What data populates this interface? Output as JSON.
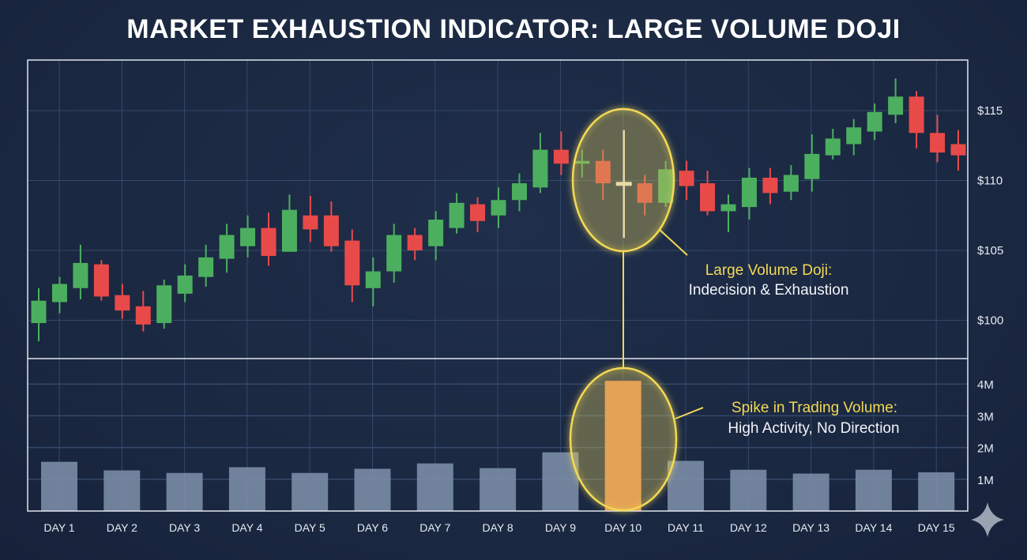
{
  "chart_data": {
    "title": "MARKET EXHAUSTION INDICATOR: LARGE VOLUME DOJI",
    "type": "candlestick+bar",
    "grid": true,
    "colors": {
      "up": "#4caf5f",
      "down": "#e84a4a",
      "doji": "#f3ecd2",
      "volume": "#7a8ca6",
      "volume_highlight": "#ef8f50",
      "annotation": "#f3d955",
      "background": "#1a2740"
    },
    "price_panel": {
      "y_ticks": [
        "$100",
        "$105",
        "$110",
        "$115"
      ],
      "y_tick_values": [
        100,
        105,
        110,
        115
      ],
      "ylim": [
        97.5,
        118.5
      ],
      "candles": [
        {
          "o": 99.8,
          "h": 102.3,
          "l": 98.5,
          "c": 101.4
        },
        {
          "o": 101.3,
          "h": 103.1,
          "l": 100.5,
          "c": 102.6
        },
        {
          "o": 102.3,
          "h": 105.4,
          "l": 101.5,
          "c": 104.1
        },
        {
          "o": 104.0,
          "h": 104.3,
          "l": 101.4,
          "c": 101.7
        },
        {
          "o": 101.8,
          "h": 102.6,
          "l": 100.1,
          "c": 100.7
        },
        {
          "o": 101.0,
          "h": 102.1,
          "l": 99.2,
          "c": 99.7
        },
        {
          "o": 99.8,
          "h": 102.9,
          "l": 99.4,
          "c": 102.5
        },
        {
          "o": 101.9,
          "h": 104.0,
          "l": 101.3,
          "c": 103.2
        },
        {
          "o": 103.1,
          "h": 105.4,
          "l": 102.4,
          "c": 104.5
        },
        {
          "o": 104.4,
          "h": 106.9,
          "l": 103.4,
          "c": 106.1
        },
        {
          "o": 105.3,
          "h": 107.5,
          "l": 104.5,
          "c": 106.6
        },
        {
          "o": 106.6,
          "h": 107.7,
          "l": 103.9,
          "c": 104.6
        },
        {
          "o": 104.9,
          "h": 109.0,
          "l": 104.9,
          "c": 107.9
        },
        {
          "o": 107.5,
          "h": 108.9,
          "l": 105.6,
          "c": 106.5
        },
        {
          "o": 107.5,
          "h": 108.5,
          "l": 104.9,
          "c": 105.3
        },
        {
          "o": 105.7,
          "h": 106.5,
          "l": 101.3,
          "c": 102.5
        },
        {
          "o": 102.3,
          "h": 104.5,
          "l": 101.0,
          "c": 103.5
        },
        {
          "o": 103.5,
          "h": 106.9,
          "l": 102.7,
          "c": 106.1
        },
        {
          "o": 106.1,
          "h": 106.6,
          "l": 104.3,
          "c": 105.0
        },
        {
          "o": 105.3,
          "h": 107.8,
          "l": 104.3,
          "c": 107.2
        },
        {
          "o": 106.6,
          "h": 109.1,
          "l": 106.2,
          "c": 108.4
        },
        {
          "o": 108.3,
          "h": 108.8,
          "l": 106.3,
          "c": 107.1
        },
        {
          "o": 107.5,
          "h": 109.5,
          "l": 106.6,
          "c": 108.6
        },
        {
          "o": 108.6,
          "h": 110.5,
          "l": 107.8,
          "c": 109.8
        },
        {
          "o": 109.5,
          "h": 113.4,
          "l": 109.1,
          "c": 112.2
        },
        {
          "o": 112.2,
          "h": 113.5,
          "l": 110.4,
          "c": 111.2
        },
        {
          "o": 111.2,
          "h": 112.2,
          "l": 110.2,
          "c": 111.4
        },
        {
          "o": 111.4,
          "h": 112.2,
          "l": 108.6,
          "c": 109.8
        },
        {
          "o": 109.9,
          "h": 113.6,
          "l": 105.9,
          "c": 109.9,
          "doji": true
        },
        {
          "o": 109.8,
          "h": 110.4,
          "l": 107.5,
          "c": 108.4
        },
        {
          "o": 108.4,
          "h": 111.4,
          "l": 108.1,
          "c": 110.8
        },
        {
          "o": 110.7,
          "h": 111.4,
          "l": 108.6,
          "c": 109.6
        },
        {
          "o": 109.8,
          "h": 110.7,
          "l": 107.5,
          "c": 107.8
        },
        {
          "o": 107.8,
          "h": 109.0,
          "l": 106.3,
          "c": 108.3
        },
        {
          "o": 108.1,
          "h": 110.9,
          "l": 107.2,
          "c": 110.2
        },
        {
          "o": 110.2,
          "h": 110.9,
          "l": 108.3,
          "c": 109.1
        },
        {
          "o": 109.2,
          "h": 111.1,
          "l": 108.6,
          "c": 110.4
        },
        {
          "o": 110.1,
          "h": 113.3,
          "l": 109.2,
          "c": 111.9
        },
        {
          "o": 111.8,
          "h": 113.7,
          "l": 111.5,
          "c": 113.0
        },
        {
          "o": 112.6,
          "h": 114.4,
          "l": 111.8,
          "c": 113.8
        },
        {
          "o": 113.5,
          "h": 115.5,
          "l": 112.9,
          "c": 114.9
        },
        {
          "o": 114.7,
          "h": 117.3,
          "l": 114.1,
          "c": 116.0
        },
        {
          "o": 116.0,
          "h": 116.4,
          "l": 112.3,
          "c": 113.4
        },
        {
          "o": 113.4,
          "h": 114.7,
          "l": 111.3,
          "c": 112.0
        },
        {
          "o": 112.6,
          "h": 113.6,
          "l": 110.7,
          "c": 111.8
        }
      ]
    },
    "volume_panel": {
      "y_ticks": [
        "1M",
        "2M",
        "3M",
        "4M"
      ],
      "y_tick_values": [
        1,
        2,
        3,
        4
      ],
      "ylim": [
        0,
        4.6
      ],
      "unit": "M",
      "categories": [
        "DAY 1",
        "DAY 2",
        "DAY 3",
        "DAY 4",
        "DAY 5",
        "DAY 6",
        "DAY 7",
        "DAY 8",
        "DAY 9",
        "DAY 10",
        "DAY 11",
        "DAY 12",
        "DAY 13",
        "DAY 14",
        "DAY 15"
      ],
      "values": [
        1.55,
        1.28,
        1.2,
        1.38,
        1.2,
        1.33,
        1.5,
        1.35,
        1.85,
        4.1,
        1.58,
        1.3,
        1.18,
        1.3,
        1.22
      ],
      "highlight_index": 9
    },
    "annotations": {
      "doji_title": "Large Volume Doji:",
      "doji_text": "Indecision & Exhaustion",
      "volume_title": "Spike in Trading Volume:",
      "volume_text": "High Activity, No Direction"
    }
  },
  "watermark_icon": "sparkle-icon"
}
